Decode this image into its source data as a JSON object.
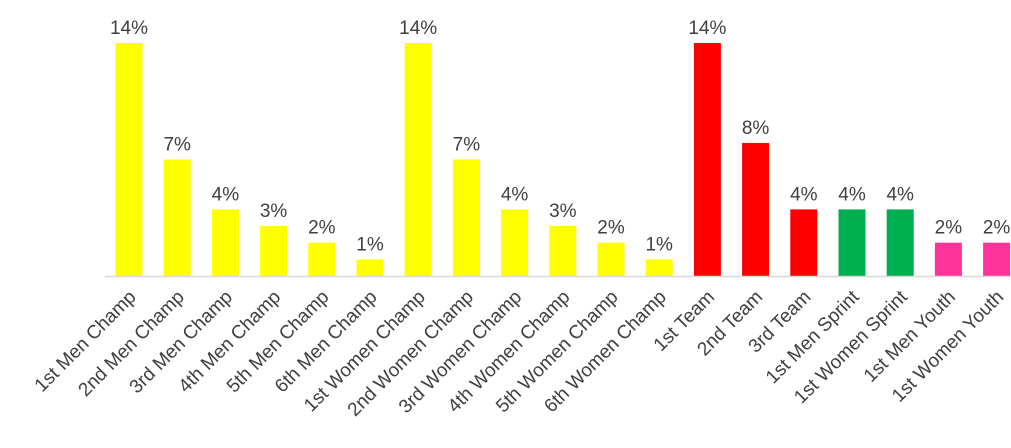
{
  "chart_data": {
    "type": "bar",
    "title": "",
    "xlabel": "",
    "ylabel": "",
    "ylim": [
      0,
      14
    ],
    "grid": false,
    "legend": "none",
    "value_suffix": "%",
    "categories": [
      "1st Men Champ",
      "2nd Men Champ",
      "3rd Men Champ",
      "4th Men Champ",
      "5th Men Champ",
      "6th Men Champ",
      "1st Women Champ",
      "2nd Women Champ",
      "3rd Women Champ",
      "4th Women Champ",
      "5th Women Champ",
      "6th Women Champ",
      "1st Team",
      "2nd Team",
      "3rd Team",
      "1st Men Sprint",
      "1st Women Sprint",
      "1st Men Youth",
      "1st Women Youth"
    ],
    "values": [
      14,
      7,
      4,
      3,
      2,
      1,
      14,
      7,
      4,
      3,
      2,
      1,
      14,
      8,
      4,
      4,
      4,
      2,
      2
    ],
    "labels": [
      "14%",
      "7%",
      "4%",
      "3%",
      "2%",
      "1%",
      "14%",
      "7%",
      "4%",
      "3%",
      "2%",
      "1%",
      "14%",
      "8%",
      "4%",
      "4%",
      "4%",
      "2%",
      "2%"
    ],
    "colors": [
      "#FFFF00",
      "#FFFF00",
      "#FFFF00",
      "#FFFF00",
      "#FFFF00",
      "#FFFF00",
      "#FFFF00",
      "#FFFF00",
      "#FFFF00",
      "#FFFF00",
      "#FFFF00",
      "#FFFF00",
      "#FF0000",
      "#FF0000",
      "#FF0000",
      "#00B050",
      "#00B050",
      "#FF3399",
      "#FF3399"
    ],
    "axis_color": "#D9D9D9"
  }
}
